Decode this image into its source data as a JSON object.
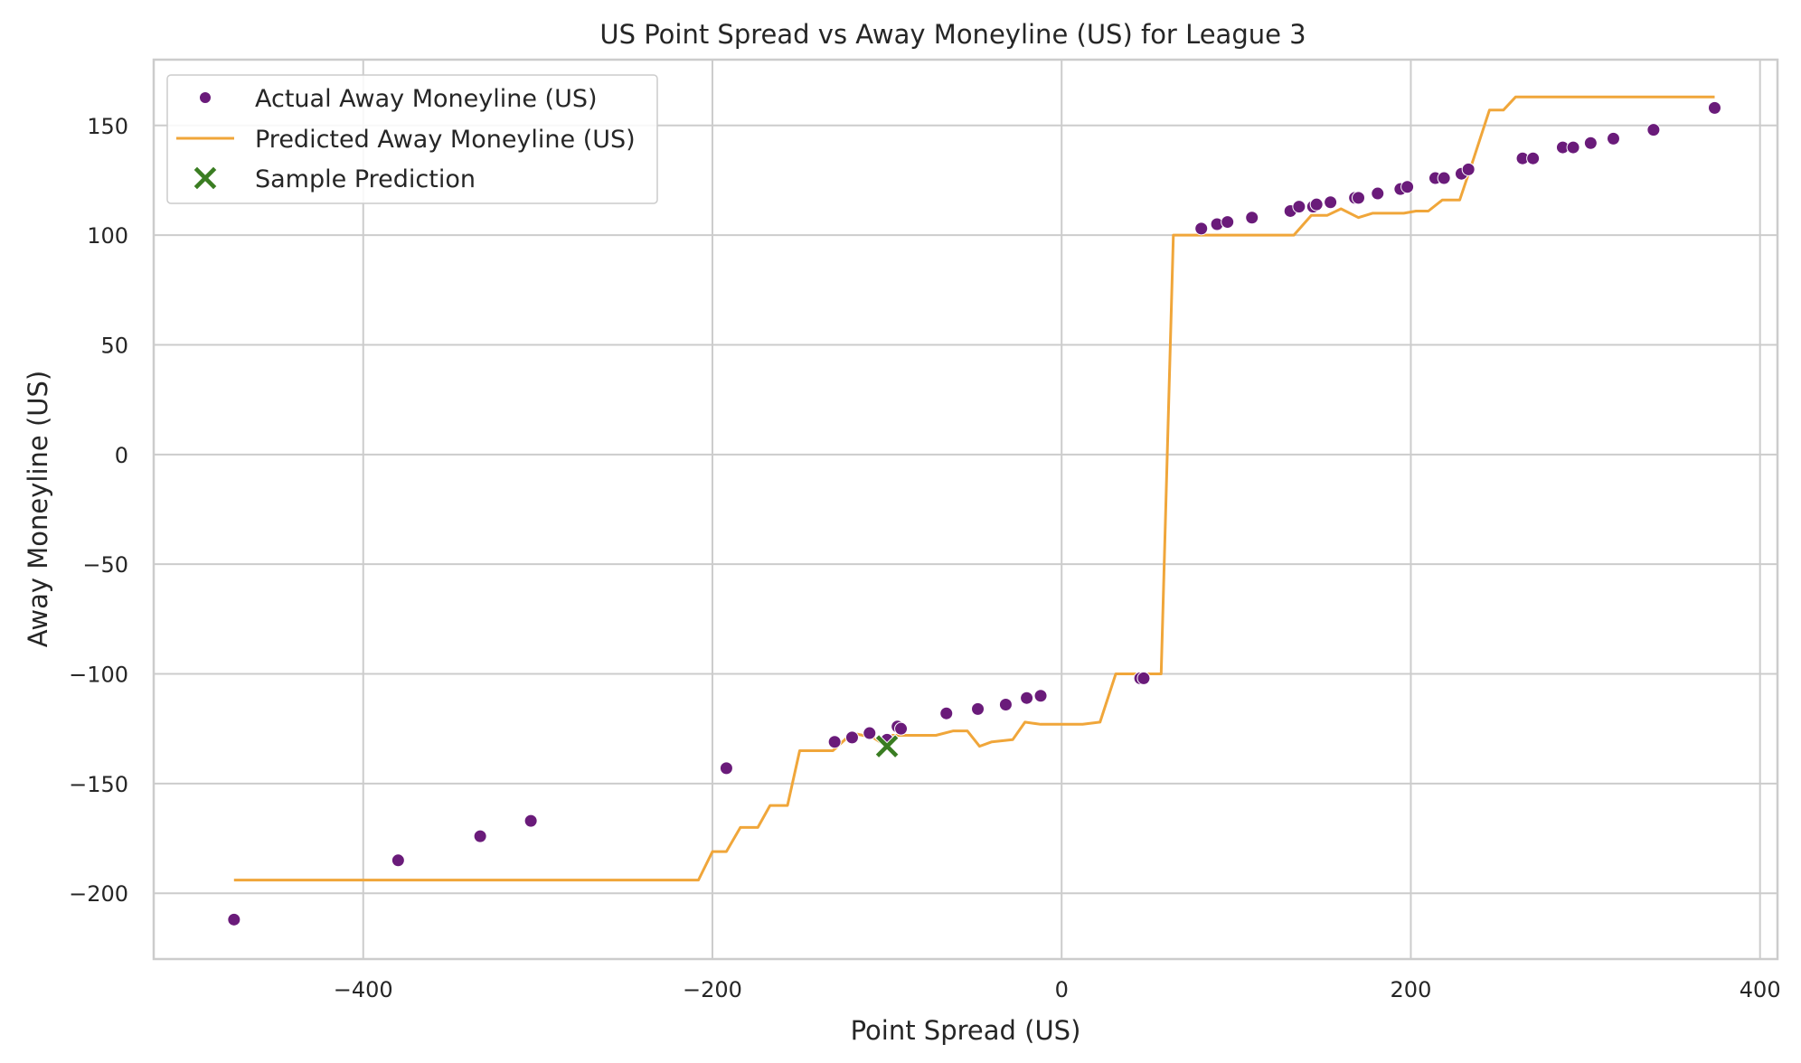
{
  "chart_data": {
    "type": "scatter",
    "title": "US Point Spread vs Away Moneyline (US) for League 3",
    "xlabel": "Point Spread (US)",
    "ylabel": "Away Moneyline (US)",
    "xlim": [
      -520,
      410
    ],
    "ylim": [
      -230,
      180
    ],
    "xticks": [
      -400,
      -200,
      0,
      200,
      400
    ],
    "xtick_labels": [
      "−400",
      "−200",
      "0",
      "200",
      "400"
    ],
    "yticks": [
      -200,
      -150,
      -100,
      -50,
      0,
      50,
      100,
      150
    ],
    "ytick_labels": [
      "−200",
      "−150",
      "−100",
      "−50",
      "0",
      "50",
      "100",
      "150"
    ],
    "grid": true,
    "legend_position": "top-left",
    "series": [
      {
        "name": "Actual Away Moneyline (US)",
        "kind": "scatter",
        "color": "#6a1b7a",
        "points": [
          [
            -474,
            -212
          ],
          [
            -380,
            -185
          ],
          [
            -333,
            -174
          ],
          [
            -304,
            -167
          ],
          [
            -192,
            -143
          ],
          [
            -130,
            -131
          ],
          [
            -120,
            -129
          ],
          [
            -110,
            -127
          ],
          [
            -100,
            -130
          ],
          [
            -94,
            -124
          ],
          [
            -92,
            -125
          ],
          [
            -66,
            -118
          ],
          [
            -48,
            -116
          ],
          [
            -32,
            -114
          ],
          [
            -20,
            -111
          ],
          [
            -12,
            -110
          ],
          [
            45,
            -102
          ],
          [
            47,
            -102
          ],
          [
            80,
            103
          ],
          [
            89,
            105
          ],
          [
            95,
            106
          ],
          [
            109,
            108
          ],
          [
            131,
            111
          ],
          [
            136,
            113
          ],
          [
            144,
            113
          ],
          [
            146,
            114
          ],
          [
            154,
            115
          ],
          [
            168,
            117
          ],
          [
            170,
            117
          ],
          [
            181,
            119
          ],
          [
            194,
            121
          ],
          [
            198,
            122
          ],
          [
            214,
            126
          ],
          [
            219,
            126
          ],
          [
            229,
            128
          ],
          [
            233,
            130
          ],
          [
            264,
            135
          ],
          [
            270,
            135
          ],
          [
            287,
            140
          ],
          [
            293,
            140
          ],
          [
            303,
            142
          ],
          [
            316,
            144
          ],
          [
            339,
            148
          ],
          [
            374,
            158
          ]
        ]
      },
      {
        "name": "Predicted Away Moneyline (US)",
        "kind": "line",
        "color": "#f0a63a",
        "points": [
          [
            -474,
            -194
          ],
          [
            -208,
            -194
          ],
          [
            -200,
            -181
          ],
          [
            -192,
            -181
          ],
          [
            -184,
            -170
          ],
          [
            -174,
            -170
          ],
          [
            -167,
            -160
          ],
          [
            -157,
            -160
          ],
          [
            -150,
            -135
          ],
          [
            -131,
            -135
          ],
          [
            -120,
            -127
          ],
          [
            -108,
            -129
          ],
          [
            -102,
            -132
          ],
          [
            -97,
            -128
          ],
          [
            -90,
            -128
          ],
          [
            -72,
            -128
          ],
          [
            -62,
            -126
          ],
          [
            -54,
            -126
          ],
          [
            -47,
            -133
          ],
          [
            -40,
            -131
          ],
          [
            -28,
            -130
          ],
          [
            -21,
            -122
          ],
          [
            -12,
            -123
          ],
          [
            12,
            -123
          ],
          [
            22,
            -122
          ],
          [
            31,
            -100
          ],
          [
            57,
            -100
          ],
          [
            64,
            100
          ],
          [
            133,
            100
          ],
          [
            143,
            109
          ],
          [
            152,
            109
          ],
          [
            160,
            112
          ],
          [
            170,
            108
          ],
          [
            178,
            110
          ],
          [
            196,
            110
          ],
          [
            203,
            111
          ],
          [
            210,
            111
          ],
          [
            218,
            116
          ],
          [
            228,
            116
          ],
          [
            236,
            135
          ],
          [
            245,
            157
          ],
          [
            253,
            157
          ],
          [
            260,
            163
          ],
          [
            374,
            163
          ]
        ]
      },
      {
        "name": "Sample Prediction",
        "kind": "marker-x",
        "color": "#3a7d22",
        "points": [
          [
            -100,
            -133
          ]
        ]
      }
    ]
  }
}
